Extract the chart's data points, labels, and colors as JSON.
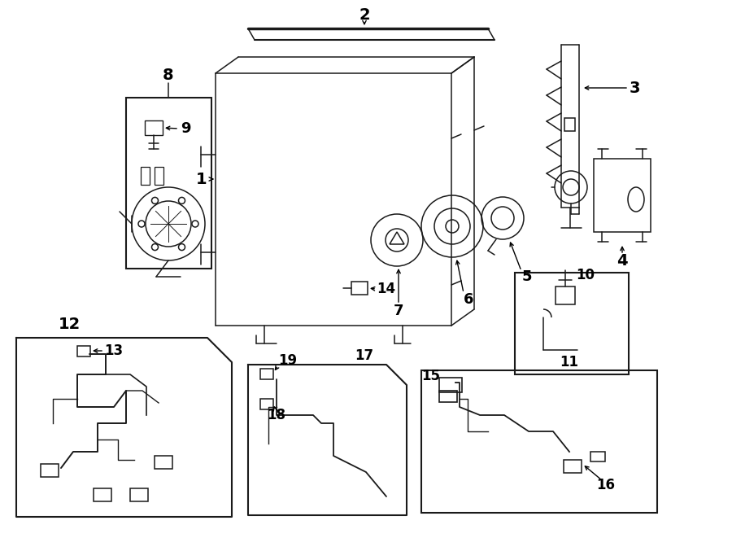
{
  "bg": "#ffffff",
  "lc": "#1a1a1a",
  "lw": 1.1,
  "fig_w": 9.0,
  "fig_h": 6.61,
  "dpi": 100
}
